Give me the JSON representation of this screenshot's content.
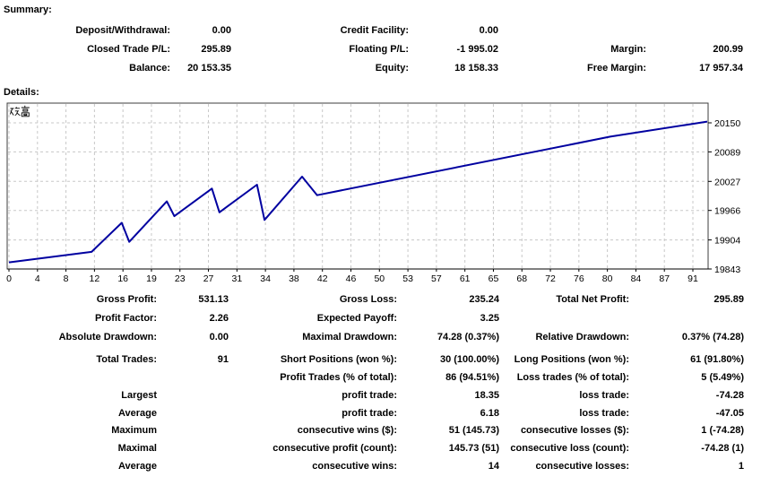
{
  "summary": {
    "heading": "Summary:",
    "rows": [
      {
        "c1l": "Deposit/Withdrawal:",
        "c1v": "0.00",
        "c2l": "Credit Facility:",
        "c2v": "0.00",
        "c3l": "",
        "c3v": ""
      },
      {
        "c1l": "Closed Trade P/L:",
        "c1v": "295.89",
        "c2l": "Floating P/L:",
        "c2v": "-1 995.02",
        "c3l": "Margin:",
        "c3v": "200.99"
      },
      {
        "c1l": "Balance:",
        "c1v": "20 153.35",
        "c2l": "Equity:",
        "c2v": "18 158.33",
        "c3l": "Free Margin:",
        "c3v": "17 957.34"
      }
    ]
  },
  "details": {
    "heading": "Details:"
  },
  "chart_data": {
    "type": "line",
    "title": "残高",
    "series_name": "Balance",
    "x_ticks": [
      0,
      4,
      8,
      12,
      16,
      19,
      23,
      27,
      31,
      34,
      38,
      42,
      46,
      50,
      53,
      57,
      61,
      65,
      68,
      72,
      76,
      80,
      84,
      87,
      91
    ],
    "y_ticks": [
      19843,
      19904,
      19966,
      20027,
      20089,
      20150
    ],
    "x_range": [
      0,
      91
    ],
    "y_range": [
      19843,
      20150
    ],
    "grid": true,
    "line_color": "#0000A0",
    "grid_color": "#c8c8c8",
    "border_color": "#3c3c3c",
    "points": [
      [
        0,
        19857
      ],
      [
        11,
        19879
      ],
      [
        15,
        19940
      ],
      [
        16,
        19900
      ],
      [
        21,
        19985
      ],
      [
        22,
        19954
      ],
      [
        27,
        20012
      ],
      [
        28,
        19962
      ],
      [
        33,
        20020
      ],
      [
        34,
        19946
      ],
      [
        39,
        20037
      ],
      [
        41,
        19998
      ],
      [
        80,
        20121
      ],
      [
        91,
        20148
      ]
    ]
  },
  "stats": {
    "block1": [
      {
        "c1l": "Gross Profit:",
        "c1v": "531.13",
        "c2l": "Gross Loss:",
        "c2v": "235.24",
        "c3l": "Total Net Profit:",
        "c3v": "295.89"
      },
      {
        "c1l": "Profit Factor:",
        "c1v": "2.26",
        "c2l": "Expected Payoff:",
        "c2v": "3.25",
        "c3l": "",
        "c3v": ""
      },
      {
        "c1l": "Absolute Drawdown:",
        "c1v": "0.00",
        "c2l": "Maximal Drawdown:",
        "c2v": "74.28 (0.37%)",
        "c3l": "Relative Drawdown:",
        "c3v": "0.37% (74.28)"
      }
    ],
    "block2": [
      {
        "c1l": "Total Trades:",
        "c1v": "91",
        "c2l": "Short Positions (won %):",
        "c2v": "30 (100.00%)",
        "c3l": "Long Positions (won %):",
        "c3v": "61 (91.80%)"
      },
      {
        "c1l": "",
        "c1v": "",
        "c2l": "Profit Trades (% of total):",
        "c2v": "86 (94.51%)",
        "c3l": "Loss trades (% of total):",
        "c3v": "5 (5.49%)"
      },
      {
        "c1l": "Largest",
        "c1v": "",
        "c2l": "profit trade:",
        "c2v": "18.35",
        "c3l": "loss trade:",
        "c3v": "-74.28"
      },
      {
        "c1l": "Average",
        "c1v": "",
        "c2l": "profit trade:",
        "c2v": "6.18",
        "c3l": "loss trade:",
        "c3v": "-47.05"
      },
      {
        "c1l": "Maximum",
        "c1v": "",
        "c2l": "consecutive wins ($):",
        "c2v": "51 (145.73)",
        "c3l": "consecutive losses ($):",
        "c3v": "1 (-74.28)"
      },
      {
        "c1l": "Maximal",
        "c1v": "",
        "c2l": "consecutive profit (count):",
        "c2v": "145.73 (51)",
        "c3l": "consecutive loss (count):",
        "c3v": "-74.28 (1)"
      },
      {
        "c1l": "Average",
        "c1v": "",
        "c2l": "consecutive wins:",
        "c2v": "14",
        "c3l": "consecutive losses:",
        "c3v": "1"
      }
    ]
  }
}
